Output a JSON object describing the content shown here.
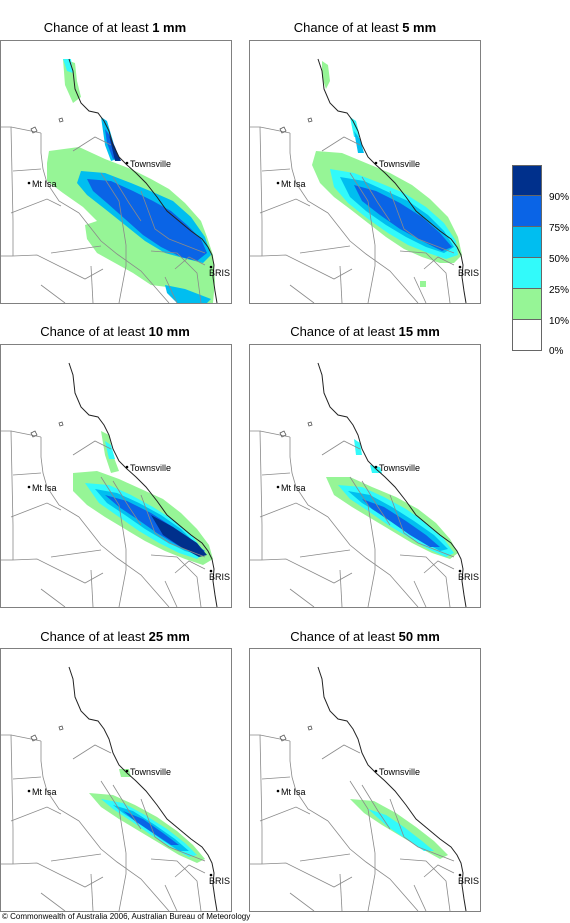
{
  "title_prefix": "Chance of at least",
  "panels": [
    {
      "threshold": "1 mm"
    },
    {
      "threshold": "5 mm"
    },
    {
      "threshold": "10 mm"
    },
    {
      "threshold": "15 mm"
    },
    {
      "threshold": "25 mm"
    },
    {
      "threshold": "50 mm"
    }
  ],
  "places": {
    "townsville": "Townsville",
    "mt_isa": "Mt Isa",
    "brisbane": "BRIS"
  },
  "legend": {
    "bins": [
      {
        "color": "#00308c",
        "label": "90%"
      },
      {
        "color": "#0a64e6",
        "label": "75%"
      },
      {
        "color": "#00bef0",
        "label": "50%"
      },
      {
        "color": "#32fafa",
        "label": "25%"
      },
      {
        "color": "#96f596",
        "label": "10%"
      },
      {
        "color": "#ffffff",
        "label": "0%"
      }
    ]
  },
  "copyright": "© Commonwealth of Australia 2006, Australian Bureau of Meteorology"
}
